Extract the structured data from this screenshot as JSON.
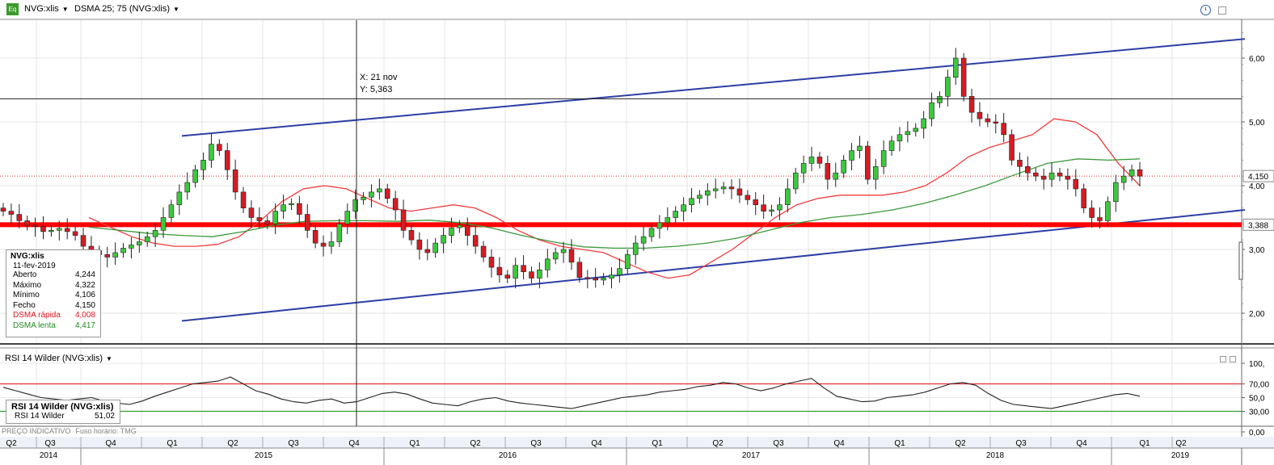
{
  "toolbar": {
    "app_icon": "Eq",
    "symbol": "NVG:xlis",
    "indicator": "DSMA 25; 75 (NVG:xlis)"
  },
  "crosshair": {
    "x_label": "X: 21 nov",
    "y_label": "Y: 5,363"
  },
  "ohlc_box": {
    "title": "NVG:xlis",
    "date": "11-fev-2019",
    "rows": [
      {
        "label": "Aberto",
        "value": "4,244",
        "color": "#000000"
      },
      {
        "label": "Máximo",
        "value": "4,322",
        "color": "#000000"
      },
      {
        "label": "Mínimo",
        "value": "4,106",
        "color": "#000000"
      },
      {
        "label": "Fecho",
        "value": "4,150",
        "color": "#000000"
      },
      {
        "label": "DSMA rápida",
        "value": "4,008",
        "color": "#e0141e"
      },
      {
        "label": "DSMA lenta",
        "value": "4,417",
        "color": "#208a20"
      }
    ]
  },
  "rsi_panel": {
    "title": "RSI 14 Wilder (NVG:xlis)",
    "box_title": "RSI 14 Wilder (NVG:xlis)",
    "box_label": "RSI 14 Wilder",
    "box_value": "51,02"
  },
  "footnote": {
    "left": "PREÇO INDICATIVO",
    "right": "Fuso horário: TMG"
  },
  "colors": {
    "up": "#3cc83c",
    "down": "#d41c24",
    "fast": "#f03c3c",
    "slow": "#3c9a3c",
    "channel": "#2b3fa6",
    "support": "#ff0000"
  },
  "chart_data": [
    {
      "type": "candlestick",
      "title": "NVG:xlis",
      "ylim": [
        1.8,
        6.8
      ],
      "ytick_values": [
        2,
        3,
        4,
        5,
        6
      ],
      "ytick_labels": [
        "2,00",
        "3,00",
        "4,00",
        "5,00",
        "6,00"
      ],
      "last_price_label": "4,150",
      "support_label": "3,388",
      "support_level": 3.388,
      "crosshair_price": 5.363,
      "quarters": [
        "Q2",
        "Q3",
        "Q4",
        "Q1",
        "Q2",
        "Q3",
        "Q4",
        "Q1",
        "Q2",
        "Q3",
        "Q4",
        "Q1",
        "Q2",
        "Q3",
        "Q4",
        "Q1",
        "Q2",
        "Q3",
        "Q4",
        "Q1",
        "Q2"
      ],
      "years": [
        "2014",
        "2015",
        "2016",
        "2017",
        "2018",
        "2019"
      ],
      "candles_close": [
        3.6,
        3.55,
        3.45,
        3.38,
        3.36,
        3.28,
        3.3,
        3.33,
        3.28,
        3.22,
        3.05,
        2.98,
        2.92,
        2.88,
        2.95,
        3.02,
        3.07,
        3.12,
        3.2,
        3.3,
        3.5,
        3.7,
        3.9,
        4.05,
        4.25,
        4.4,
        4.65,
        4.55,
        4.25,
        3.9,
        3.65,
        3.5,
        3.45,
        3.4,
        3.6,
        3.7,
        3.72,
        3.55,
        3.3,
        3.1,
        3.05,
        3.12,
        3.4,
        3.6,
        3.78,
        3.82,
        3.9,
        3.95,
        3.8,
        3.62,
        3.3,
        3.15,
        3.0,
        2.95,
        3.1,
        3.22,
        3.34,
        3.38,
        3.22,
        3.05,
        2.88,
        2.72,
        2.6,
        2.55,
        2.75,
        2.65,
        2.55,
        2.68,
        2.85,
        2.95,
        3.0,
        2.8,
        2.56,
        2.55,
        2.52,
        2.55,
        2.6,
        2.7,
        2.92,
        3.1,
        3.2,
        3.33,
        3.42,
        3.5,
        3.6,
        3.7,
        3.8,
        3.85,
        3.92,
        3.95,
        3.98,
        3.95,
        3.85,
        3.78,
        3.7,
        3.6,
        3.62,
        3.7,
        3.95,
        4.2,
        4.35,
        4.45,
        4.35,
        4.1,
        4.2,
        4.4,
        4.55,
        4.62,
        4.1,
        4.3,
        4.55,
        4.7,
        4.8,
        4.85,
        4.9,
        5.05,
        5.3,
        5.4,
        5.7,
        6.0,
        5.4,
        5.15,
        5.05,
        5.0,
        4.98,
        4.8,
        4.4,
        4.3,
        4.2,
        4.15,
        4.1,
        4.2,
        4.15,
        4.1,
        3.95,
        3.65,
        3.5,
        3.45,
        3.75,
        4.05,
        4.15,
        4.25,
        4.15
      ],
      "fast_ma": [
        3.5,
        3.35,
        3.2,
        3.1,
        3.05,
        3.05,
        3.08,
        3.2,
        3.45,
        3.75,
        3.95,
        4.0,
        3.95,
        3.8,
        3.65,
        3.6,
        3.65,
        3.7,
        3.65,
        3.5,
        3.3,
        3.15,
        3.05,
        3.0,
        2.95,
        2.8,
        2.65,
        2.55,
        2.6,
        2.8,
        3.0,
        3.25,
        3.5,
        3.7,
        3.8,
        3.85,
        3.85,
        3.85,
        3.9,
        4.0,
        4.2,
        4.45,
        4.6,
        4.7,
        4.8,
        5.05,
        5.0,
        4.8,
        4.35,
        4.0
      ],
      "slow_ma": [
        3.35,
        3.3,
        3.25,
        3.22,
        3.2,
        3.28,
        3.38,
        3.44,
        3.45,
        3.45,
        3.44,
        3.46,
        3.42,
        3.34,
        3.22,
        3.12,
        3.04,
        3.02,
        3.02,
        3.05,
        3.1,
        3.18,
        3.3,
        3.42,
        3.5,
        3.55,
        3.62,
        3.72,
        3.85,
        4.0,
        4.18,
        4.35,
        4.42,
        4.4,
        4.42
      ],
      "channel_upper": {
        "from_price": 4.78,
        "to_price": 6.3
      },
      "channel_lower": {
        "from_price": 1.88,
        "to_price": 3.62
      }
    },
    {
      "type": "line",
      "title": "RSI 14 Wilder (NVG:xlis)",
      "ylim": [
        0,
        100
      ],
      "ytick_values": [
        100,
        70,
        50,
        30,
        0
      ],
      "ytick_labels": [
        "100,",
        "70,00",
        "50,0",
        "30,00",
        "0,00"
      ],
      "overbought": 70,
      "oversold": 30,
      "values": [
        65,
        60,
        55,
        50,
        48,
        46,
        48,
        50,
        45,
        42,
        40,
        45,
        52,
        58,
        64,
        70,
        72,
        74,
        80,
        70,
        60,
        55,
        48,
        44,
        42,
        46,
        48,
        42,
        44,
        50,
        56,
        58,
        55,
        48,
        42,
        40,
        38,
        44,
        48,
        50,
        45,
        42,
        40,
        38,
        36,
        34,
        38,
        42,
        46,
        50,
        52,
        54,
        58,
        60,
        62,
        66,
        68,
        72,
        70,
        64,
        60,
        64,
        70,
        74,
        78,
        64,
        52,
        48,
        44,
        45,
        50,
        52,
        54,
        58,
        64,
        70,
        72,
        68,
        56,
        46,
        40,
        38,
        36,
        34,
        38,
        42,
        46,
        50,
        54,
        56,
        52
      ]
    }
  ]
}
